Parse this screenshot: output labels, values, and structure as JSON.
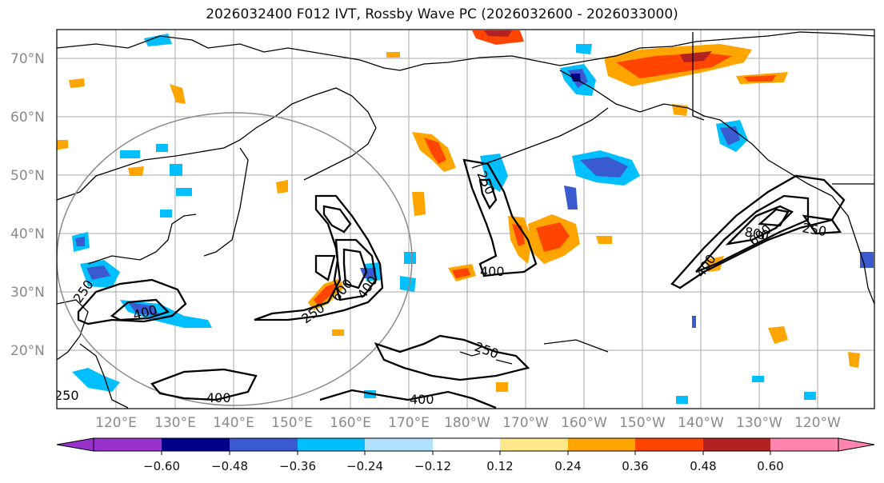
{
  "title": "2026032400 F012 IVT, Rossby Wave PC (2026032600 - 2026033000)",
  "lat_labels": [
    "70°N",
    "60°N",
    "50°N",
    "40°N",
    "30°N",
    "20°N"
  ],
  "lon_labels": [
    "120°E",
    "130°E",
    "140°E",
    "150°E",
    "160°E",
    "170°E",
    "180°W",
    "170°W",
    "160°W",
    "150°W",
    "140°W",
    "130°W",
    "120°W"
  ],
  "colorbar": {
    "ticks": [
      "−0.60",
      "−0.48",
      "−0.36",
      "−0.24",
      "−0.12",
      "0.12",
      "0.24",
      "0.36",
      "0.48",
      "0.60"
    ],
    "colors": [
      "#9932cc",
      "#00008b",
      "#3a5bd0",
      "#00bfff",
      "#b0e2ff",
      "#ffffff",
      "#ffe88a",
      "#ffa500",
      "#ff4500",
      "#b22222",
      "#ff85b0"
    ]
  },
  "contour_labels": [
    "250",
    "400",
    "250",
    "600",
    "400",
    "250",
    "400",
    "250",
    "400",
    "400",
    "250",
    "800",
    "400",
    "600",
    "250"
  ]
}
